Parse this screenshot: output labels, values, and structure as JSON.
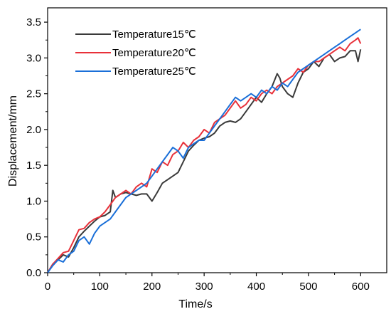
{
  "chart_data": {
    "type": "line",
    "xlabel": "Time/s",
    "ylabel": "Displacement/mm",
    "xlim": [
      0,
      650
    ],
    "ylim": [
      0,
      3.7
    ],
    "xticks": [
      0,
      100,
      200,
      300,
      400,
      500,
      600
    ],
    "yticks": [
      0.0,
      0.5,
      1.0,
      1.5,
      2.0,
      2.5,
      3.0,
      3.5
    ],
    "xtick_labels": [
      "0",
      "100",
      "200",
      "300",
      "400",
      "500",
      "600"
    ],
    "ytick_labels": [
      "0.0",
      "0.5",
      "1.0",
      "1.5",
      "2.0",
      "2.5",
      "3.0",
      "3.5"
    ],
    "legend_position": "top-left",
    "grid": false,
    "series": [
      {
        "name": "Temperature15℃",
        "color": "#3a3a3a",
        "x": [
          0,
          10,
          20,
          30,
          40,
          50,
          60,
          70,
          80,
          90,
          100,
          110,
          120,
          125,
          130,
          140,
          150,
          160,
          170,
          180,
          190,
          195,
          200,
          210,
          220,
          230,
          240,
          250,
          260,
          270,
          280,
          290,
          300,
          310,
          320,
          330,
          340,
          350,
          360,
          370,
          380,
          390,
          400,
          410,
          420,
          430,
          440,
          445,
          450,
          460,
          470,
          480,
          490,
          500,
          510,
          520,
          530,
          540,
          550,
          560,
          570,
          580,
          590,
          595,
          600
        ],
        "y": [
          0.0,
          0.12,
          0.18,
          0.25,
          0.22,
          0.35,
          0.5,
          0.58,
          0.65,
          0.72,
          0.78,
          0.8,
          0.85,
          1.15,
          1.05,
          1.1,
          1.12,
          1.1,
          1.08,
          1.1,
          1.1,
          1.05,
          1.0,
          1.12,
          1.25,
          1.3,
          1.35,
          1.4,
          1.55,
          1.7,
          1.78,
          1.85,
          1.88,
          1.9,
          1.95,
          2.05,
          2.1,
          2.12,
          2.1,
          2.15,
          2.25,
          2.35,
          2.45,
          2.38,
          2.5,
          2.6,
          2.78,
          2.72,
          2.6,
          2.5,
          2.45,
          2.65,
          2.8,
          2.85,
          2.95,
          2.88,
          3.0,
          3.05,
          2.95,
          3.0,
          3.02,
          3.1,
          3.1,
          2.95,
          3.12
        ]
      },
      {
        "name": "Temperature20℃",
        "color": "#e8313a",
        "x": [
          0,
          10,
          20,
          30,
          40,
          50,
          60,
          70,
          80,
          90,
          100,
          110,
          120,
          130,
          140,
          150,
          160,
          170,
          180,
          190,
          200,
          210,
          220,
          230,
          240,
          250,
          260,
          270,
          280,
          290,
          300,
          310,
          320,
          330,
          340,
          350,
          360,
          370,
          380,
          390,
          400,
          410,
          420,
          430,
          440,
          450,
          460,
          470,
          480,
          490,
          500,
          510,
          520,
          530,
          540,
          550,
          560,
          570,
          580,
          590,
          595,
          600
        ],
        "y": [
          0.0,
          0.12,
          0.2,
          0.28,
          0.3,
          0.45,
          0.6,
          0.62,
          0.7,
          0.75,
          0.78,
          0.85,
          0.95,
          1.05,
          1.1,
          1.15,
          1.1,
          1.2,
          1.25,
          1.2,
          1.45,
          1.4,
          1.55,
          1.5,
          1.65,
          1.7,
          1.82,
          1.75,
          1.85,
          1.9,
          2.0,
          1.95,
          2.1,
          2.15,
          2.2,
          2.3,
          2.4,
          2.3,
          2.35,
          2.45,
          2.4,
          2.5,
          2.55,
          2.5,
          2.6,
          2.65,
          2.7,
          2.75,
          2.85,
          2.8,
          2.9,
          2.95,
          2.95,
          3.0,
          3.05,
          3.1,
          3.15,
          3.1,
          3.2,
          3.25,
          3.28,
          3.2
        ]
      },
      {
        "name": "Temperature25℃",
        "color": "#1a6fd8",
        "x": [
          0,
          10,
          20,
          30,
          40,
          50,
          60,
          70,
          80,
          90,
          100,
          110,
          120,
          130,
          140,
          150,
          160,
          170,
          180,
          190,
          200,
          210,
          220,
          230,
          240,
          250,
          260,
          270,
          280,
          290,
          300,
          310,
          320,
          330,
          340,
          350,
          360,
          370,
          380,
          390,
          400,
          410,
          420,
          430,
          440,
          450,
          460,
          470,
          480,
          490,
          500,
          510,
          520,
          530,
          540,
          550,
          560,
          570,
          580,
          590,
          600
        ],
        "y": [
          0.0,
          0.1,
          0.18,
          0.15,
          0.25,
          0.3,
          0.45,
          0.5,
          0.4,
          0.55,
          0.65,
          0.7,
          0.75,
          0.85,
          0.95,
          1.05,
          1.1,
          1.15,
          1.2,
          1.25,
          1.35,
          1.45,
          1.55,
          1.65,
          1.75,
          1.7,
          1.6,
          1.75,
          1.8,
          1.85,
          1.85,
          1.95,
          2.05,
          2.15,
          2.25,
          2.35,
          2.45,
          2.4,
          2.45,
          2.5,
          2.45,
          2.55,
          2.5,
          2.6,
          2.55,
          2.65,
          2.6,
          2.7,
          2.8,
          2.85,
          2.9,
          2.95,
          3.0,
          3.05,
          3.1,
          3.15,
          3.2,
          3.25,
          3.3,
          3.35,
          3.4
        ]
      }
    ]
  }
}
